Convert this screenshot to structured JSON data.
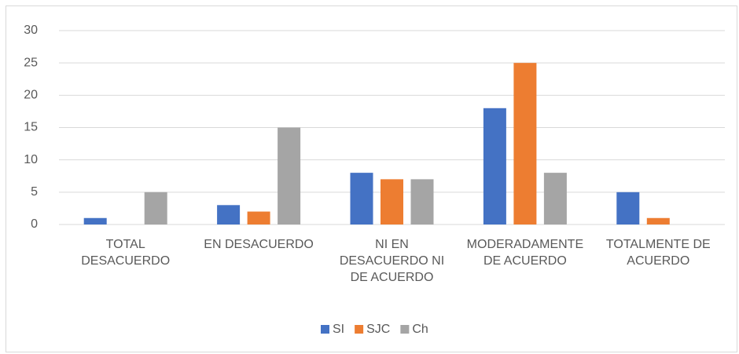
{
  "chart_data": {
    "type": "bar",
    "categories": [
      "TOTAL DESACUERDO",
      "EN DESACUERDO",
      "NI EN DESACUERDO NI DE ACUERDO",
      "MODERADAMENTE DE ACUERDO",
      "TOTALMENTE DE ACUERDO"
    ],
    "series": [
      {
        "name": "SI",
        "color": "#4472c4",
        "values": [
          1,
          3,
          8,
          18,
          5
        ]
      },
      {
        "name": "SJC",
        "color": "#ed7d31",
        "values": [
          0,
          2,
          7,
          25,
          1
        ]
      },
      {
        "name": "Ch",
        "color": "#a5a5a5",
        "values": [
          5,
          15,
          7,
          8,
          0
        ]
      }
    ],
    "ylim": [
      0,
      30
    ],
    "yticks": [
      0,
      5,
      10,
      15,
      20,
      25,
      30
    ],
    "grid": true,
    "legend": "bottom"
  }
}
